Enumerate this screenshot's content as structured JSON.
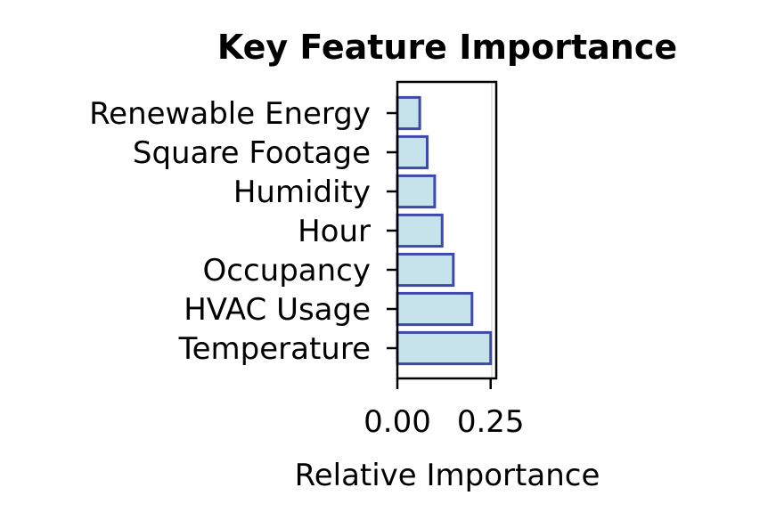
{
  "chart_data": {
    "type": "bar",
    "orientation": "horizontal",
    "title": "Key Feature Importance",
    "xlabel": "Relative Importance",
    "ylabel": "",
    "categories": [
      "Temperature",
      "HVAC Usage",
      "Occupancy",
      "Hour",
      "Humidity",
      "Square Footage",
      "Renewable Energy"
    ],
    "values": [
      0.25,
      0.2,
      0.15,
      0.12,
      0.1,
      0.08,
      0.06
    ],
    "xlim": [
      0,
      0.265
    ],
    "xticks": [
      0.0,
      0.25
    ],
    "xtick_labels": [
      "0.00",
      "0.25"
    ],
    "grid": false,
    "bar_fill": "#c6e3ec",
    "bar_edge": "#3e49ad"
  }
}
